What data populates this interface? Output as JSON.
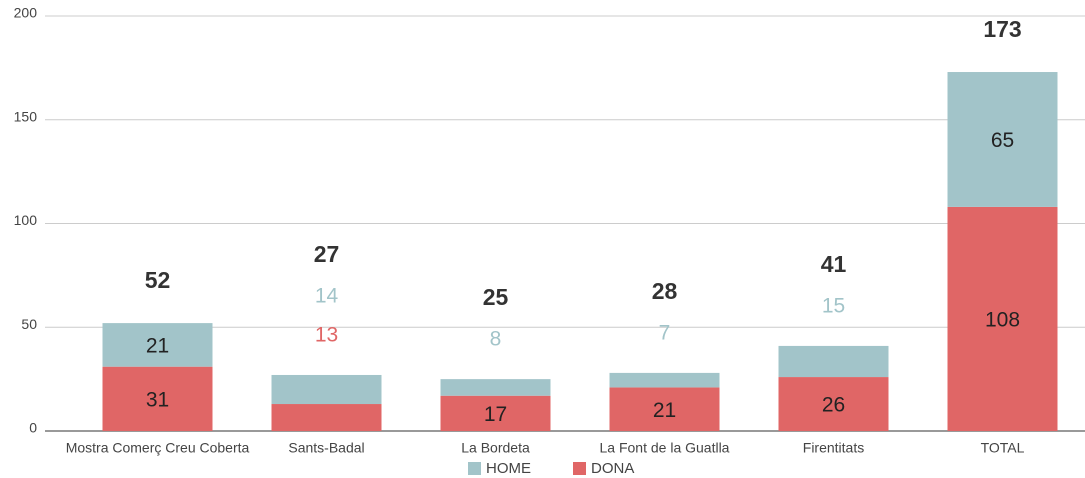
{
  "chart_data": {
    "type": "stacked_bar",
    "categories": [
      "Mostra Comerç Creu Coberta",
      "Sants-Badal",
      "La Bordeta",
      "La Font de la Guatlla",
      "Firentitats",
      "TOTAL"
    ],
    "series": [
      {
        "name": "DONA",
        "color": "#e06666",
        "values": [
          31,
          13,
          17,
          21,
          26,
          108
        ]
      },
      {
        "name": "HOME",
        "color": "#a2c4c9",
        "values": [
          21,
          14,
          8,
          7,
          15,
          65
        ]
      }
    ],
    "totals": [
      52,
      27,
      25,
      28,
      41,
      173
    ],
    "ylim": [
      0,
      200
    ],
    "yticks": [
      0,
      50,
      100,
      150,
      200
    ],
    "grid": true,
    "legend": "bottom"
  }
}
